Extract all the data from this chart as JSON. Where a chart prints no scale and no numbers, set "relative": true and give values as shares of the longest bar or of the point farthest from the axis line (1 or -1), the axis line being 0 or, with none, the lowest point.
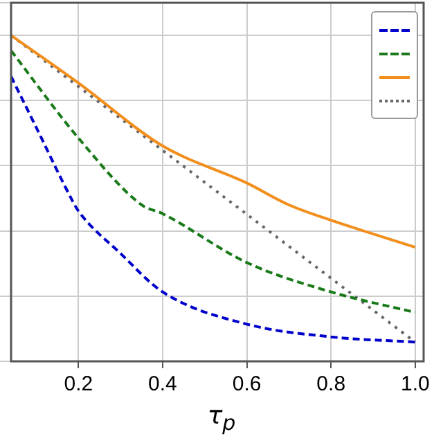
{
  "chart_data": {
    "type": "line",
    "xlabel": "τ$_{p}$",
    "relative": true,
    "xlim": [
      0.04,
      1.02
    ],
    "xticks": [
      {
        "value": 0.2,
        "label": "0.2"
      },
      {
        "value": 0.4,
        "label": "0.4"
      },
      {
        "value": 0.6,
        "label": "0.6"
      },
      {
        "value": 0.8,
        "label": "0.8"
      },
      {
        "value": 1.0,
        "label": "1.0"
      }
    ],
    "grid": true,
    "marker": "none",
    "series": [
      {
        "color": "#0000cc",
        "line_style": "dashed",
        "x": [
          0.04,
          0.1,
          0.186,
          0.2,
          0.3,
          0.4,
          0.6,
          0.8,
          1.0
        ],
        "values": [
          0.874,
          0.717,
          0.492,
          0.461,
          0.331,
          0.213,
          0.114,
          0.075,
          0.059
        ]
      },
      {
        "color": "#1a7a1a",
        "line_style": "dashed",
        "x": [
          0.04,
          0.2,
          0.35,
          0.4,
          0.6,
          0.8,
          1.0
        ],
        "values": [
          0.953,
          0.685,
          0.48,
          0.453,
          0.303,
          0.213,
          0.15
        ]
      },
      {
        "color": "#f28e1c",
        "line_style": "solid",
        "x": [
          0.04,
          0.2,
          0.4,
          0.6,
          0.7,
          0.8,
          1.0
        ],
        "values": [
          1.0,
          0.854,
          0.661,
          0.547,
          0.48,
          0.433,
          0.35
        ]
      },
      {
        "color": "#666666",
        "line_style": "dotted",
        "x": [
          0.04,
          1.0
        ],
        "values": [
          1.0,
          0.059
        ]
      }
    ]
  }
}
